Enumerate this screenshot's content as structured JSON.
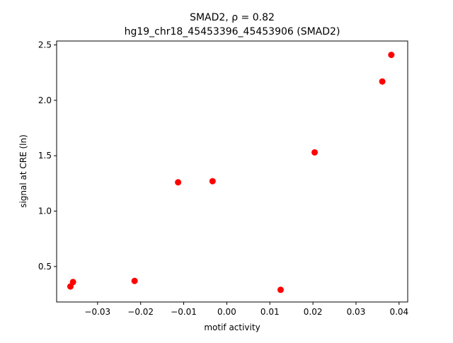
{
  "chart_data": {
    "type": "scatter",
    "title_lines": [
      "SMAD2, ρ = 0.82",
      "hg19_chr18_45453396_45453906 (SMAD2)"
    ],
    "xlabel": "motif activity",
    "ylabel": "signal at CRE (ln)",
    "xlim": [
      -0.0395,
      0.042
    ],
    "ylim": [
      0.18,
      2.535
    ],
    "xticks": [
      -0.03,
      -0.02,
      -0.01,
      0.0,
      0.01,
      0.02,
      0.03,
      0.04
    ],
    "xtick_labels": [
      "−0.03",
      "−0.02",
      "−0.01",
      "0.00",
      "0.01",
      "0.02",
      "0.03",
      "0.04"
    ],
    "yticks": [
      0.5,
      1.0,
      1.5,
      2.0,
      2.5
    ],
    "ytick_labels": [
      "0.5",
      "1.0",
      "1.5",
      "2.0",
      "2.5"
    ],
    "grid": false,
    "marker_color": "#ff0000",
    "points": [
      {
        "x": -0.0363,
        "y": 0.32
      },
      {
        "x": -0.0357,
        "y": 0.36
      },
      {
        "x": -0.0214,
        "y": 0.37
      },
      {
        "x": -0.0113,
        "y": 1.26
      },
      {
        "x": -0.0033,
        "y": 1.27
      },
      {
        "x": 0.0125,
        "y": 0.29
      },
      {
        "x": 0.0204,
        "y": 1.53
      },
      {
        "x": 0.0361,
        "y": 2.17
      },
      {
        "x": 0.0382,
        "y": 2.41
      }
    ]
  }
}
